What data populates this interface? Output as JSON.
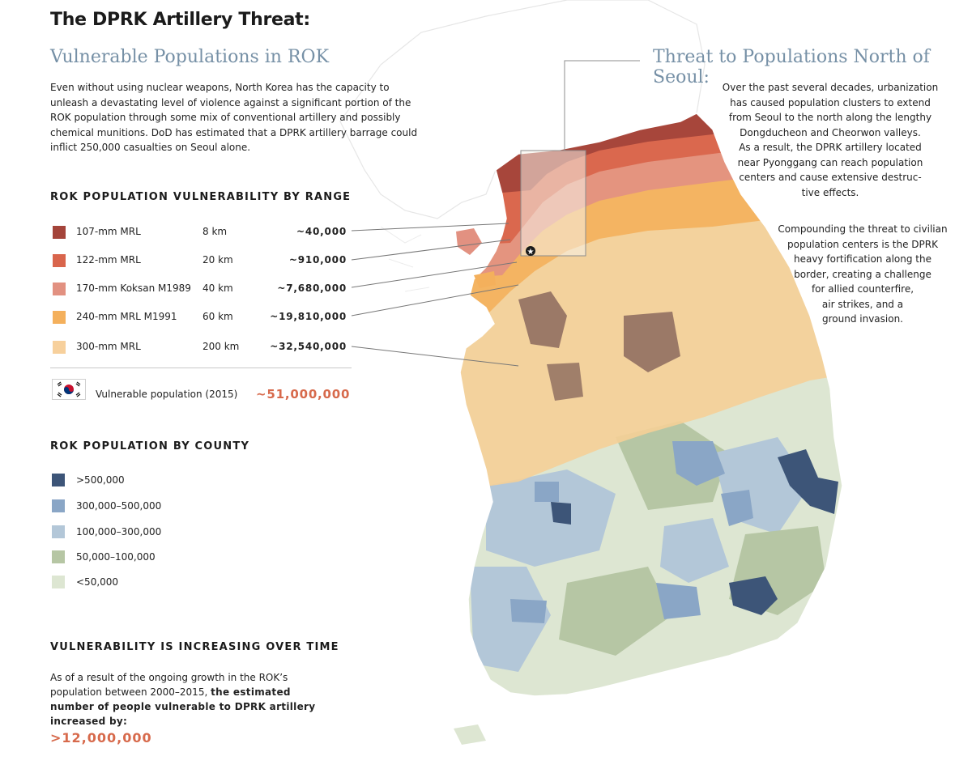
{
  "title": "The DPRK Artillery Threat:",
  "subtitle_left": "Vulnerable Populations in ROK",
  "subtitle_right": "Threat to Populations North of Seoul:",
  "intro_text": "Even without using nuclear weapons, North Korea has the capacity to unleash a devastating level of violence against a significant portion of the ROK population through some mix of conventional artillery and possibly chemical munitions. DoD has estimated that a DPRK artillery barrage could inflict 250,000 casualties on Seoul alone.",
  "range_section": {
    "heading": "ROK POPULATION VULNERABILITY BY RANGE",
    "rows": [
      {
        "weapon": "107-mm MRL",
        "range": "8 km",
        "population": "~40,000",
        "color": "#a4443a"
      },
      {
        "weapon": "122-mm MRL",
        "range": "20 km",
        "population": "~910,000",
        "color": "#d9654c"
      },
      {
        "weapon": "170-mm Koksan M1989",
        "range": "40 km",
        "population": "~7,680,000",
        "color": "#e29181"
      },
      {
        "weapon": "240-mm MRL M1991",
        "range": "60 km",
        "population": "~19,810,000",
        "color": "#f4b05c"
      },
      {
        "weapon": "300-mm MRL",
        "range": "200 km",
        "population": "~32,540,000",
        "color": "#f7d09c"
      }
    ],
    "vulnerable_label": "Vulnerable population (2015)",
    "vulnerable_value": "~51,000,000"
  },
  "county_section": {
    "heading": "ROK POPULATION BY COUNTY",
    "rows": [
      {
        "label": ">500,000",
        "color": "#3d5578"
      },
      {
        "label": "300,000–500,000",
        "color": "#8aa6c6"
      },
      {
        "label": "100,000–300,000",
        "color": "#b3c7d8"
      },
      {
        "label": "50,000–100,000",
        "color": "#b6c6a4"
      },
      {
        "label": "<50,000",
        "color": "#dde6d2"
      }
    ]
  },
  "time_section": {
    "heading": "VULNERABILITY IS INCREASING OVER TIME",
    "text_plain": "As of a result of the ongoing growth in the ROK’s population between 2000–2015,",
    "text_bold": "the estimated number of people vulnerable to DPRK artillery increased by:",
    "value": ">12,000,000"
  },
  "right_text": {
    "para1_lines": [
      "Over the past several decades, urbanization",
      "has caused population clusters to extend",
      "from Seoul to the north along the lengthy",
      "Dongducheon and Cheorwon valleys.",
      "As a result, the DPRK artillery located",
      "near Pyonggang can reach population",
      "centers and cause extensive destruc-",
      "tive effects."
    ],
    "para2_lines": [
      "Compounding the threat to civilian",
      "population centers is the DPRK",
      "heavy fortification along the",
      "border, creating a challenge",
      "for allied counterfire,",
      "air strikes, and a",
      "ground invasion."
    ]
  }
}
